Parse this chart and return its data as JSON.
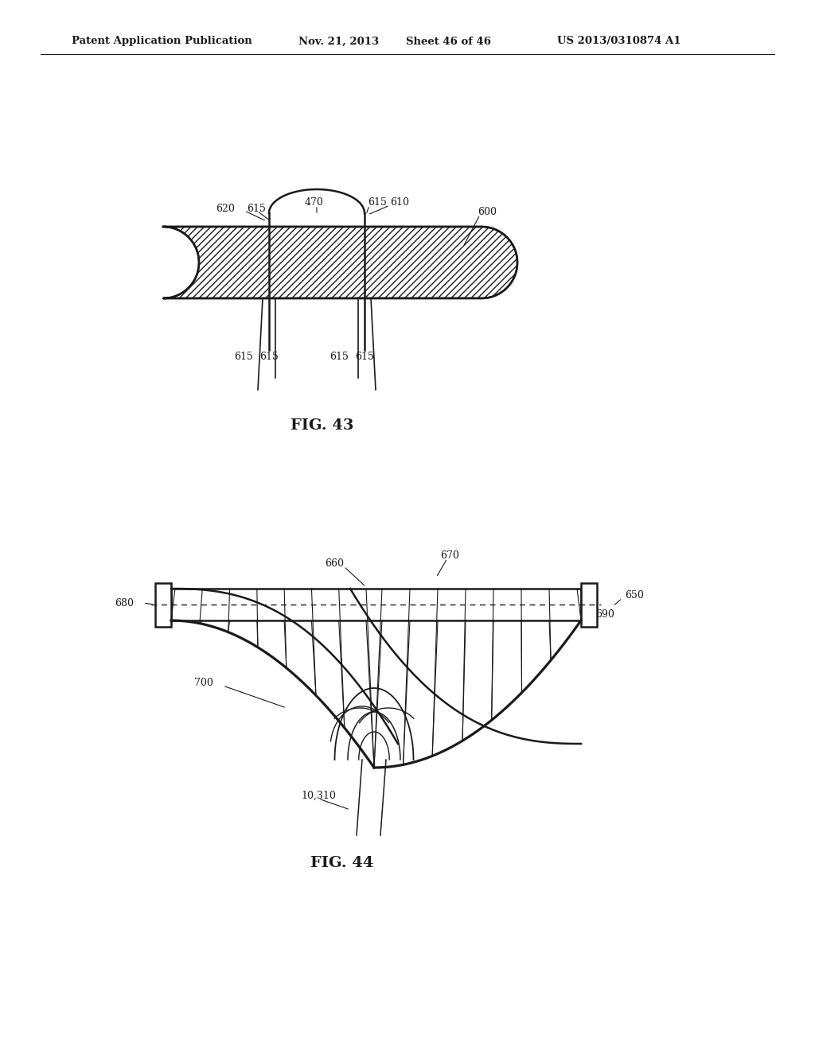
{
  "bg_color": "#ffffff",
  "header_text": "Patent Application Publication",
  "header_date": "Nov. 21, 2013",
  "header_sheet": "Sheet 46 of 46",
  "header_patent": "US 2013/0310874 A1",
  "fig43_label": "FIG. 43",
  "fig44_label": "FIG. 44",
  "color_main": "#1a1a1a"
}
